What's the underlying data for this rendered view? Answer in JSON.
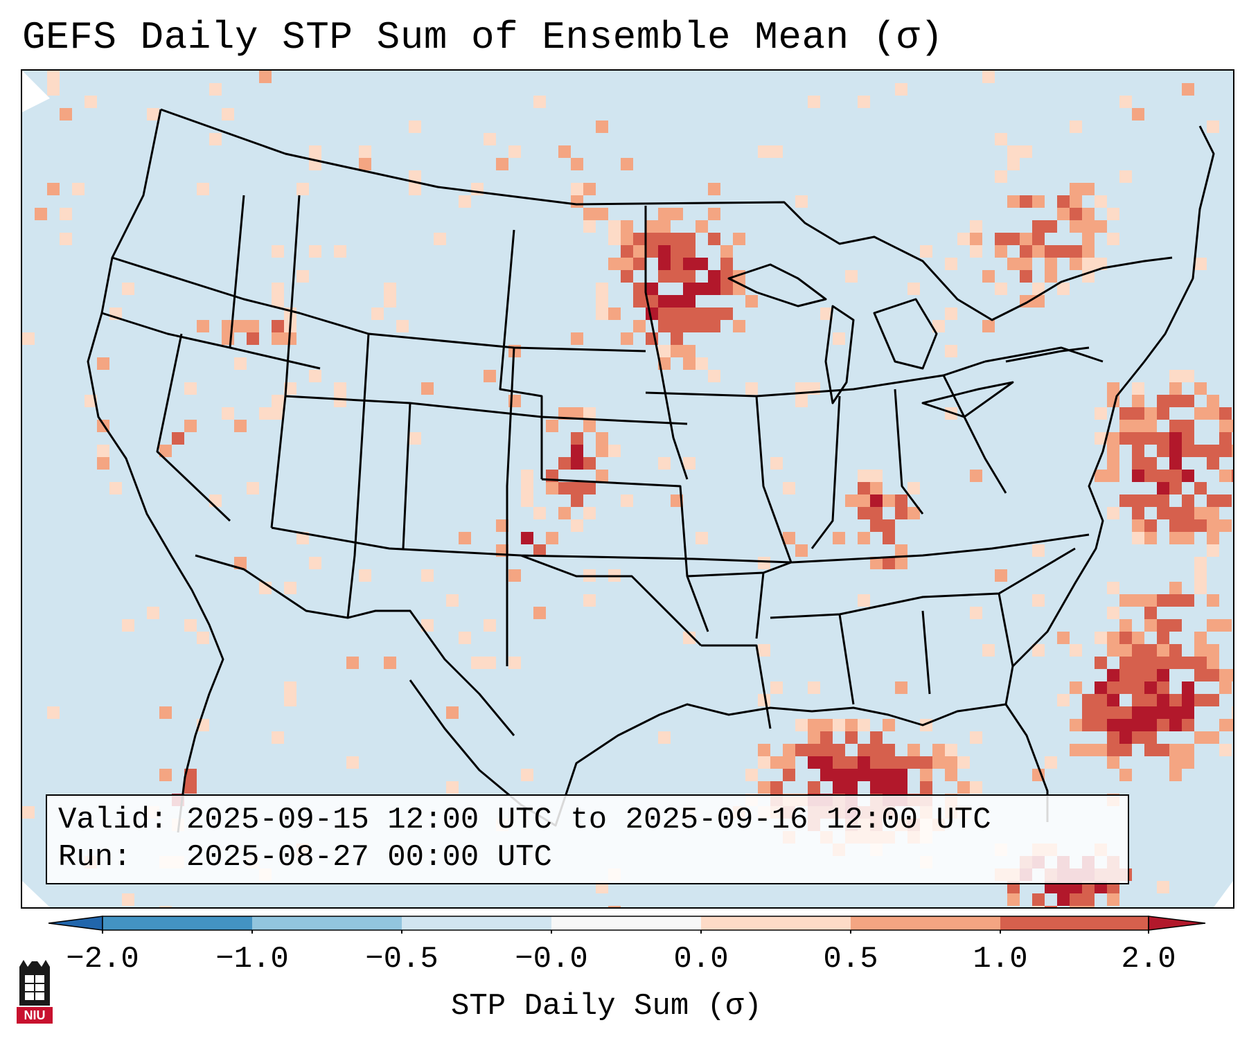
{
  "title": "GEFS Daily STP Sum of Ensemble Mean (σ)",
  "map": {
    "region": "Continental United States",
    "ocean_color": "#d1e5f0",
    "border_color": "#000000"
  },
  "info_box": {
    "valid_line": "Valid: 2025-09-15 12:00 UTC to 2025-09-16 12:00 UTC",
    "run_line": "Run:   2025-08-27 00:00 UTC"
  },
  "colorbar": {
    "label": "STP Daily Sum (σ)",
    "ticks": [
      "−2.0",
      "−1.0",
      "−0.5",
      "−0.0",
      "0.0",
      "0.5",
      "1.0",
      "2.0"
    ],
    "colors": [
      "#2166ac",
      "#4393c3",
      "#92c5de",
      "#d1e5f0",
      "#f7f7f7",
      "#fddbc7",
      "#f4a582",
      "#d6604d",
      "#b2182b"
    ]
  },
  "logo": {
    "text": "NIU",
    "icon": "niu-logo-icon"
  }
}
